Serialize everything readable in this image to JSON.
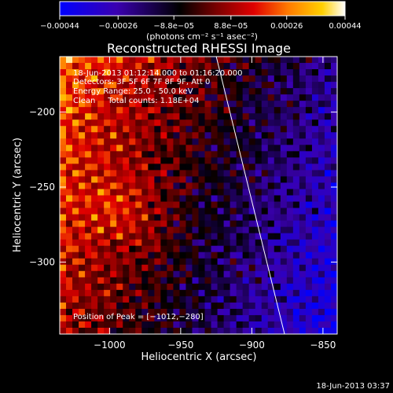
{
  "chart_data": {
    "type": "heatmap",
    "title": "Reconstructed RHESSI Image",
    "xlabel": "Heliocentric X (arcsec)",
    "ylabel": "Heliocentric Y (arcsec)",
    "xlim": [
      -1035,
      -840
    ],
    "ylim": [
      -348,
      -163
    ],
    "x_ticks": [
      -1000,
      -950,
      -900,
      -850
    ],
    "x_tick_labels": [
      "−1000",
      "−950",
      "−900",
      "−850"
    ],
    "y_ticks": [
      -200,
      -250,
      -300
    ],
    "y_tick_labels": [
      "−200",
      "−250",
      "−300"
    ],
    "colorbar": {
      "range": [
        -0.00044,
        0.00044
      ],
      "ticks": [
        -0.00044,
        -0.00026,
        -8.8e-05,
        8.8e-05,
        0.00026,
        0.00044
      ],
      "tick_labels": [
        "−0.00044",
        "−0.00026",
        "−8.8e−05",
        "8.8e−05",
        "0.00026",
        "0.00044"
      ],
      "unit_label": "(photons cm⁻² s⁻¹ asec⁻²)",
      "colors": [
        "#0000ff",
        "#3a00b0",
        "#000000",
        "#7a0000",
        "#e00000",
        "#ff7a00",
        "#ffd000",
        "#ffffff"
      ]
    },
    "annotations": {
      "time_range": "18-Jun-2013 01:12:14.000 to 01:16:20.000",
      "detectors": "Detectors: 3F 5F 6F 7F 8F 9F, Att 0",
      "energy_range": "Energy Range: 25.0 - 50.0 keV",
      "clean_counts": "Clean     Total counts: 1.18E+04",
      "peak_position": "Position of Peak = [−1012,−280]"
    },
    "limb_line": {
      "x": [
        -925,
        -877
      ],
      "y": [
        -163,
        -348
      ]
    },
    "peak": {
      "x": -1012,
      "y": -280
    }
  },
  "footer": {
    "timestamp": "18-Jun-2013 03:37"
  }
}
